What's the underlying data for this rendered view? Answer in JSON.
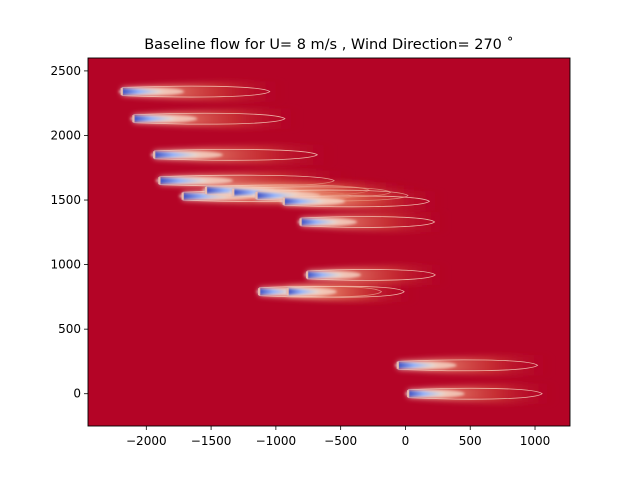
{
  "chart_data": {
    "type": "heatmap",
    "title": "Baseline flow for U= 8 m/s  ,  Wind Direction= 270  ˚",
    "xlabel": "",
    "ylabel": "",
    "xlim": [
      -2450,
      1270
    ],
    "ylim": [
      -250,
      2600
    ],
    "x_ticks": [
      -2000,
      -1500,
      -1000,
      -500,
      0,
      500,
      1000
    ],
    "x_tick_labels": [
      "−2000",
      "−1500",
      "−1000",
      "−500",
      "0",
      "500",
      "1000"
    ],
    "y_ticks": [
      0,
      500,
      1000,
      1500,
      2000,
      2500
    ],
    "y_tick_labels": [
      "0",
      "500",
      "1000",
      "1500",
      "2000",
      "2500"
    ],
    "grid": false,
    "colors": {
      "free_stream": "#b40426",
      "wake_mid": "#e8765c",
      "wake_light": "#f3c3ab",
      "deficit": "#3b4cc0"
    },
    "turbines": [
      {
        "x": -2190,
        "y": 2340,
        "wake_length": 1270
      },
      {
        "x": -2100,
        "y": 2130,
        "wake_length": 1300
      },
      {
        "x": -1940,
        "y": 1850,
        "wake_length": 1400
      },
      {
        "x": -1900,
        "y": 1650,
        "wake_length": 1500
      },
      {
        "x": -1720,
        "y": 1530,
        "wake_length": 1450
      },
      {
        "x": -1540,
        "y": 1575,
        "wake_length": 1400
      },
      {
        "x": -1330,
        "y": 1560,
        "wake_length": 1350
      },
      {
        "x": -1150,
        "y": 1535,
        "wake_length": 1300
      },
      {
        "x": -940,
        "y": 1490,
        "wake_length": 1250
      },
      {
        "x": -810,
        "y": 1330,
        "wake_length": 1150
      },
      {
        "x": -1130,
        "y": 790,
        "wake_length": 1050
      },
      {
        "x": -910,
        "y": 790,
        "wake_length": 1000
      },
      {
        "x": -760,
        "y": 920,
        "wake_length": 1100
      },
      {
        "x": -60,
        "y": 220,
        "wake_length": 1200
      },
      {
        "x": 20,
        "y": 0,
        "wake_length": 1150
      }
    ]
  }
}
